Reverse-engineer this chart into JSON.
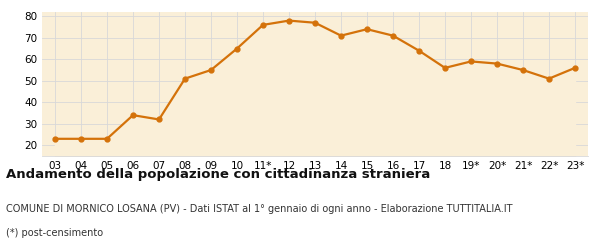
{
  "x_labels": [
    "03",
    "04",
    "05",
    "06",
    "07",
    "08",
    "09",
    "10",
    "11*",
    "12",
    "13",
    "14",
    "15",
    "16",
    "17",
    "18",
    "19*",
    "20*",
    "21*",
    "22*",
    "23*"
  ],
  "y_values": [
    23,
    23,
    23,
    34,
    32,
    51,
    55,
    65,
    76,
    78,
    77,
    71,
    74,
    71,
    64,
    56,
    59,
    58,
    55,
    51,
    56
  ],
  "line_color": "#d4720a",
  "fill_color": "#faefd8",
  "marker_style": "o",
  "marker_size": 3.5,
  "linewidth": 1.6,
  "ylim": [
    15,
    82
  ],
  "yticks": [
    20,
    30,
    40,
    50,
    60,
    70,
    80
  ],
  "grid_color": "#d8d8d8",
  "background_color": "#faefd8",
  "title": "Andamento della popolazione con cittadinanza straniera",
  "subtitle": "COMUNE DI MORNICO LOSANA (PV) - Dati ISTAT al 1° gennaio di ogni anno - Elaborazione TUTTITALIA.IT",
  "footnote": "(*) post-censimento",
  "title_fontsize": 9.5,
  "subtitle_fontsize": 7.0,
  "footnote_fontsize": 7.0,
  "tick_fontsize": 7.5,
  "fig_width": 6.0,
  "fig_height": 2.4,
  "dpi": 100
}
